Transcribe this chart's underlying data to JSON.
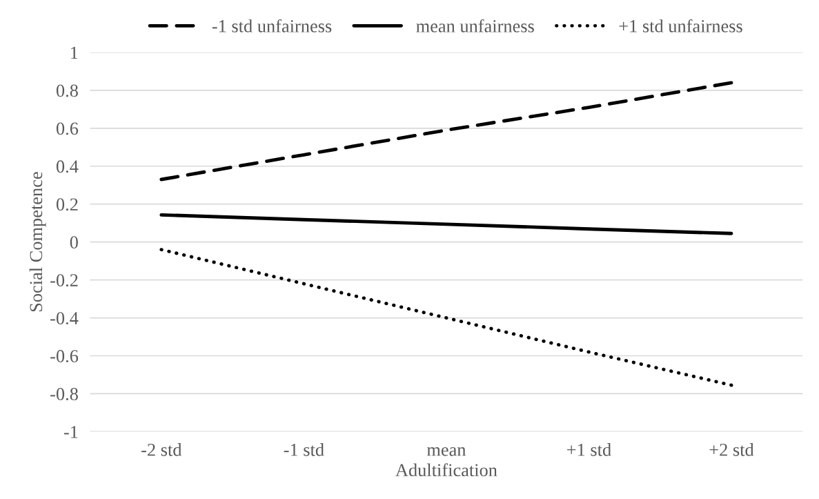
{
  "chart_data": {
    "type": "line",
    "xlabel": "Adultification",
    "ylabel": "Social Competence",
    "categories": [
      "-2 std",
      "-1 std",
      "mean",
      "+1 std",
      "+2 std"
    ],
    "series": [
      {
        "name": "-1 std unfairness",
        "color": "#000000",
        "line_style": "dashed",
        "values": [
          0.33,
          0.46,
          0.59,
          0.71,
          0.84
        ]
      },
      {
        "name": "mean unfairness",
        "color": "#000000",
        "line_style": "solid",
        "values": [
          0.143,
          0.118,
          0.094,
          0.069,
          0.045
        ]
      },
      {
        "name": "+1 std unfairness",
        "color": "#000000",
        "line_style": "dotted",
        "values": [
          -0.04,
          -0.22,
          -0.4,
          -0.58,
          -0.755
        ]
      }
    ],
    "ylim": [
      -1,
      1
    ],
    "yticks": [
      {
        "value": -1,
        "label": "-1"
      },
      {
        "value": -0.8,
        "label": "-0.8"
      },
      {
        "value": -0.6,
        "label": "-0.6"
      },
      {
        "value": -0.4,
        "label": "-0.4"
      },
      {
        "value": -0.2,
        "label": "-0.2"
      },
      0,
      0.2,
      0.4,
      0.6,
      0.8,
      1
    ],
    "grid": "y",
    "legend": "top",
    "marker": "none"
  }
}
